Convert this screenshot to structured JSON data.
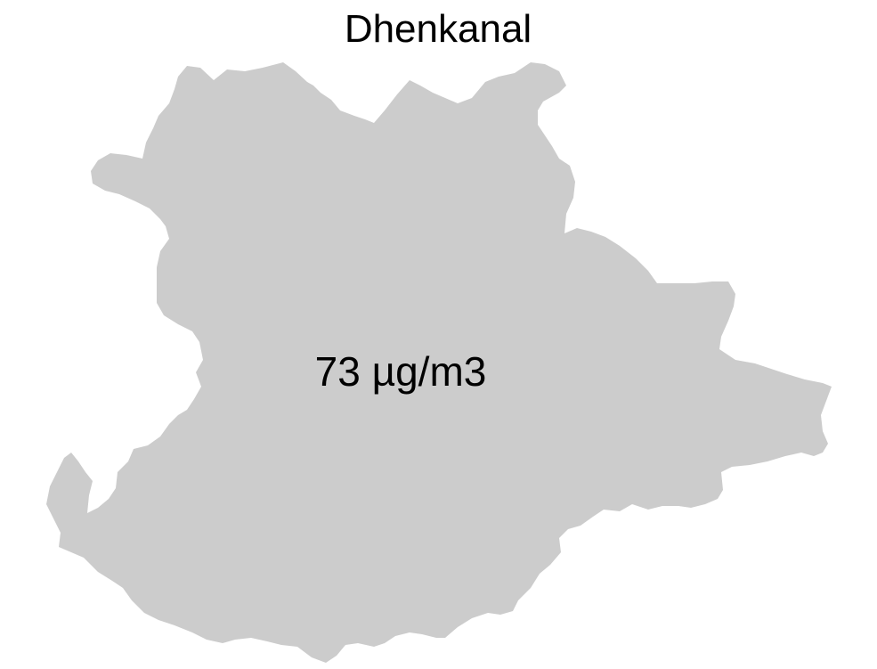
{
  "map": {
    "title": "Dhenkanal",
    "value_label": "73 µg/m3",
    "region_color": "#cccccc",
    "background_color": "#ffffff"
  }
}
